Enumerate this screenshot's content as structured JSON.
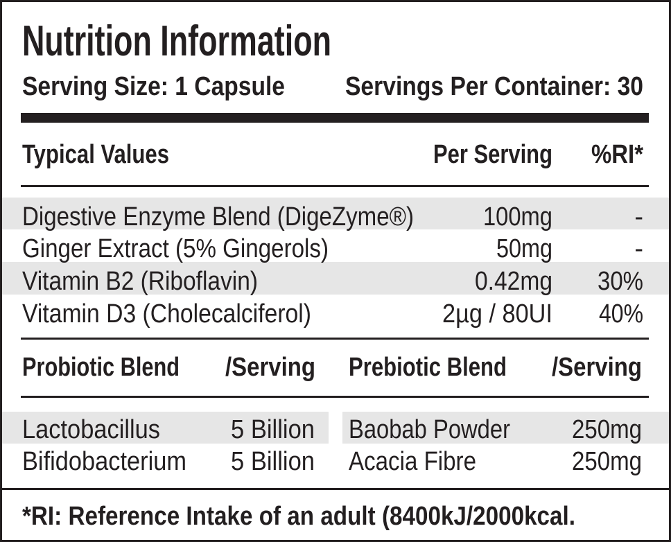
{
  "header": {
    "title": "Nutrition Information",
    "serving_size": "Serving Size: 1 Capsule",
    "servings_per_container": "Servings Per Container: 30"
  },
  "table": {
    "header": [
      "Typical Values",
      "Per Serving",
      "%RI*"
    ],
    "rows": [
      [
        "Digestive Enzyme Blend (DigeZyme®)",
        "100mg",
        "-"
      ],
      [
        "Ginger Extract (5% Gingerols)",
        "50mg",
        "-"
      ],
      [
        "Vitamin B2 (Riboflavin)",
        "0.42mg",
        "30%"
      ],
      [
        "Vitamin D3 (Cholecalciferol)",
        "2µg / 80UI",
        "40%"
      ]
    ]
  },
  "probiotic": {
    "header": [
      "Probiotic Blend",
      "/Serving"
    ],
    "rows": [
      [
        "Lactobacillus",
        "5 Billion"
      ],
      [
        "Bifidobacterium",
        "5 Billion"
      ]
    ]
  },
  "prebiotic": {
    "header": [
      "Prebiotic Blend",
      "/Serving"
    ],
    "rows": [
      [
        "Baobab Powder",
        "250mg"
      ],
      [
        "Acacia Fibre",
        "250mg"
      ]
    ]
  },
  "footnote": "*RI: Reference Intake of an adult (8400kJ/2000kcal."
}
